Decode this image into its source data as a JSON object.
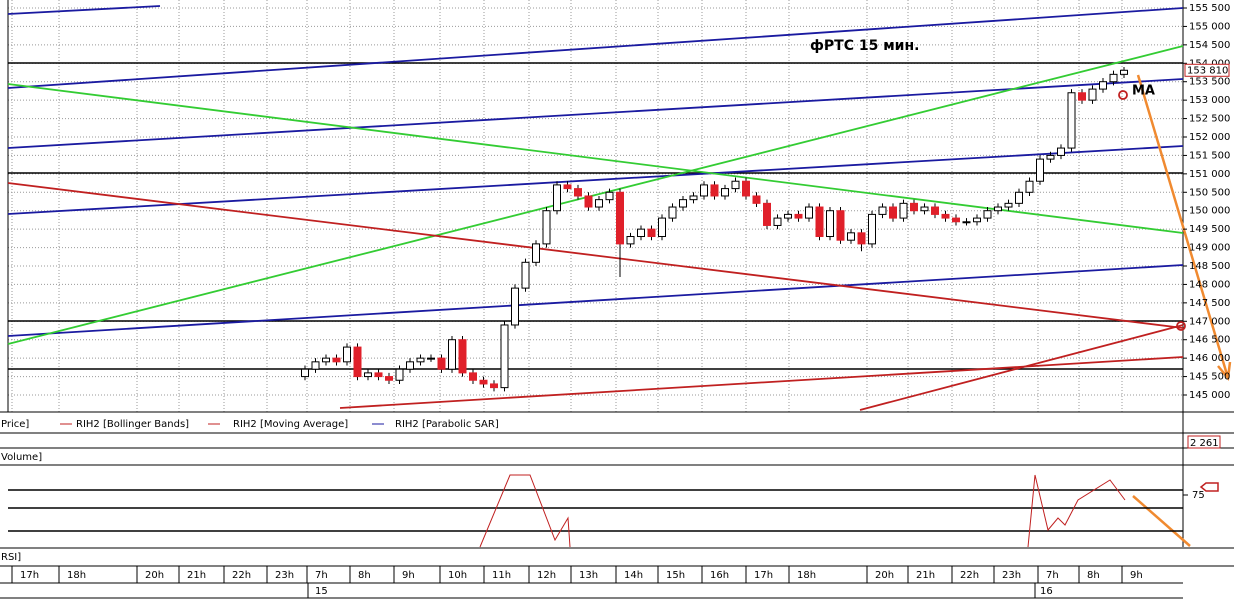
{
  "chart_data": {
    "type": "candlestick",
    "title": "фРТС  15 мин.",
    "annotation": "MA",
    "legend": [
      "Price]",
      "RIH2 [Bollinger Bands]",
      "RIH2 [Moving Average]",
      "RIH2 [Parabolic SAR]"
    ],
    "last_price": {
      "value": 153810,
      "label": "153 810"
    },
    "volume": {
      "title": "Volume]",
      "value": 2261,
      "label": "2 261"
    },
    "rsi": {
      "title": "RSI]",
      "yticks": [
        75
      ]
    },
    "time_labels": [
      "17h",
      "18h",
      "20h",
      "21h",
      "22h",
      "23h",
      "7h",
      "8h",
      "9h",
      "10h",
      "11h",
      "12h",
      "13h",
      "14h",
      "15h",
      "16h",
      "17h",
      "18h",
      "20h",
      "21h",
      "22h",
      "23h",
      "7h",
      "8h",
      "9h"
    ],
    "dates": [
      "15",
      "16"
    ],
    "ylim": [
      145000,
      155500
    ],
    "yticks": [
      {
        "value": 145000,
        "label": "145 000"
      },
      {
        "value": 145500,
        "label": "145 500"
      },
      {
        "value": 146000,
        "label": "146 000"
      },
      {
        "value": 146500,
        "label": "146 500"
      },
      {
        "value": 147000,
        "label": "147 000"
      },
      {
        "value": 147500,
        "label": "147 500"
      },
      {
        "value": 148000,
        "label": "148 000"
      },
      {
        "value": 148500,
        "label": "148 500"
      },
      {
        "value": 149000,
        "label": "149 000"
      },
      {
        "value": 149500,
        "label": "149 500"
      },
      {
        "value": 150000,
        "label": "150 000"
      },
      {
        "value": 150500,
        "label": "150 500"
      },
      {
        "value": 151000,
        "label": "151 000"
      },
      {
        "value": 151500,
        "label": "151 500"
      },
      {
        "value": 152000,
        "label": "152 000"
      },
      {
        "value": 152500,
        "label": "152 500"
      },
      {
        "value": 153000,
        "label": "153 000"
      },
      {
        "value": 153500,
        "label": "153 500"
      },
      {
        "value": 154000,
        "label": "154 000"
      },
      {
        "value": 154500,
        "label": "154 500"
      },
      {
        "value": 155000,
        "label": "155 000"
      },
      {
        "value": 155500,
        "label": "155 500"
      }
    ],
    "grid": true,
    "up_color": "#ffffff",
    "down_color": "#e0202a",
    "open": [
      145500,
      145700,
      145900,
      146000,
      145900,
      146300,
      145500,
      145600,
      145500,
      145400,
      145700,
      145900,
      146000,
      146000,
      145700,
      146500,
      145600,
      145400,
      145300,
      145200,
      146900,
      147900,
      148600,
      149100,
      150000,
      150700,
      150600,
      150400,
      150100,
      150300,
      150500,
      149100,
      149300,
      149500,
      149300,
      149800,
      150100,
      150300,
      150400,
      150700,
      150400,
      150600,
      150800,
      150400,
      150200,
      149600,
      149800,
      149900,
      149800,
      150100,
      149300,
      150000,
      149200,
      149400,
      149100,
      149900,
      150100,
      149800,
      150200,
      150000,
      150100,
      149900,
      149800,
      149700,
      149700,
      149800,
      150000,
      150100,
      150200,
      150500,
      150800,
      151400,
      151500,
      151700,
      153200,
      153000,
      153300,
      153500,
      153700
    ],
    "high": [
      145800,
      146000,
      146100,
      146100,
      146400,
      146400,
      145700,
      145700,
      145600,
      145800,
      146000,
      146100,
      146100,
      146100,
      146600,
      146600,
      145700,
      145500,
      145400,
      147000,
      148000,
      148700,
      149200,
      150100,
      150800,
      150800,
      150700,
      150500,
      150400,
      150600,
      150600,
      149400,
      149600,
      149600,
      149900,
      150200,
      150400,
      150500,
      150800,
      150800,
      150700,
      150900,
      150900,
      150500,
      150300,
      149900,
      150000,
      150000,
      150200,
      150200,
      150100,
      150100,
      149500,
      149500,
      150000,
      150200,
      150200,
      150300,
      150300,
      150200,
      150200,
      150000,
      149900,
      149800,
      149900,
      150100,
      150200,
      150300,
      150600,
      150900,
      151500,
      151600,
      151800,
      153300,
      153300,
      153400,
      153600,
      153800,
      153900
    ],
    "low": [
      145400,
      145600,
      145800,
      145800,
      145800,
      145400,
      145400,
      145400,
      145300,
      145300,
      145600,
      145800,
      145900,
      145600,
      145600,
      145500,
      145300,
      145200,
      145100,
      145100,
      146800,
      147800,
      148500,
      149000,
      149900,
      150500,
      150300,
      150000,
      150000,
      150200,
      148200,
      149000,
      149200,
      149200,
      149200,
      149700,
      150000,
      150200,
      150300,
      150300,
      150300,
      150500,
      150300,
      150100,
      149500,
      149500,
      149700,
      149700,
      149700,
      149200,
      149200,
      149100,
      149100,
      148900,
      149000,
      149800,
      149700,
      149700,
      149900,
      149900,
      149800,
      149700,
      149600,
      149600,
      149600,
      149700,
      149900,
      150000,
      150100,
      150400,
      150700,
      151300,
      151400,
      151600,
      152900,
      152900,
      153200,
      153400,
      153600
    ],
    "close": [
      145700,
      145900,
      146000,
      145900,
      146300,
      145500,
      145600,
      145500,
      145400,
      145700,
      145900,
      146000,
      146000,
      145700,
      146500,
      145600,
      145400,
      145300,
      145200,
      146900,
      147900,
      148600,
      149100,
      150000,
      150700,
      150600,
      150400,
      150100,
      150300,
      150500,
      149100,
      149300,
      149500,
      149300,
      149800,
      150100,
      150300,
      150400,
      150700,
      150400,
      150600,
      150800,
      150400,
      150200,
      149600,
      149800,
      149900,
      149800,
      150100,
      149300,
      150000,
      149200,
      149400,
      149100,
      149900,
      150100,
      149800,
      150200,
      150000,
      150100,
      149900,
      149800,
      149700,
      149700,
      149800,
      150000,
      150100,
      150200,
      150500,
      150800,
      151400,
      151500,
      151700,
      153200,
      153000,
      153300,
      153500,
      153700,
      153810
    ]
  }
}
